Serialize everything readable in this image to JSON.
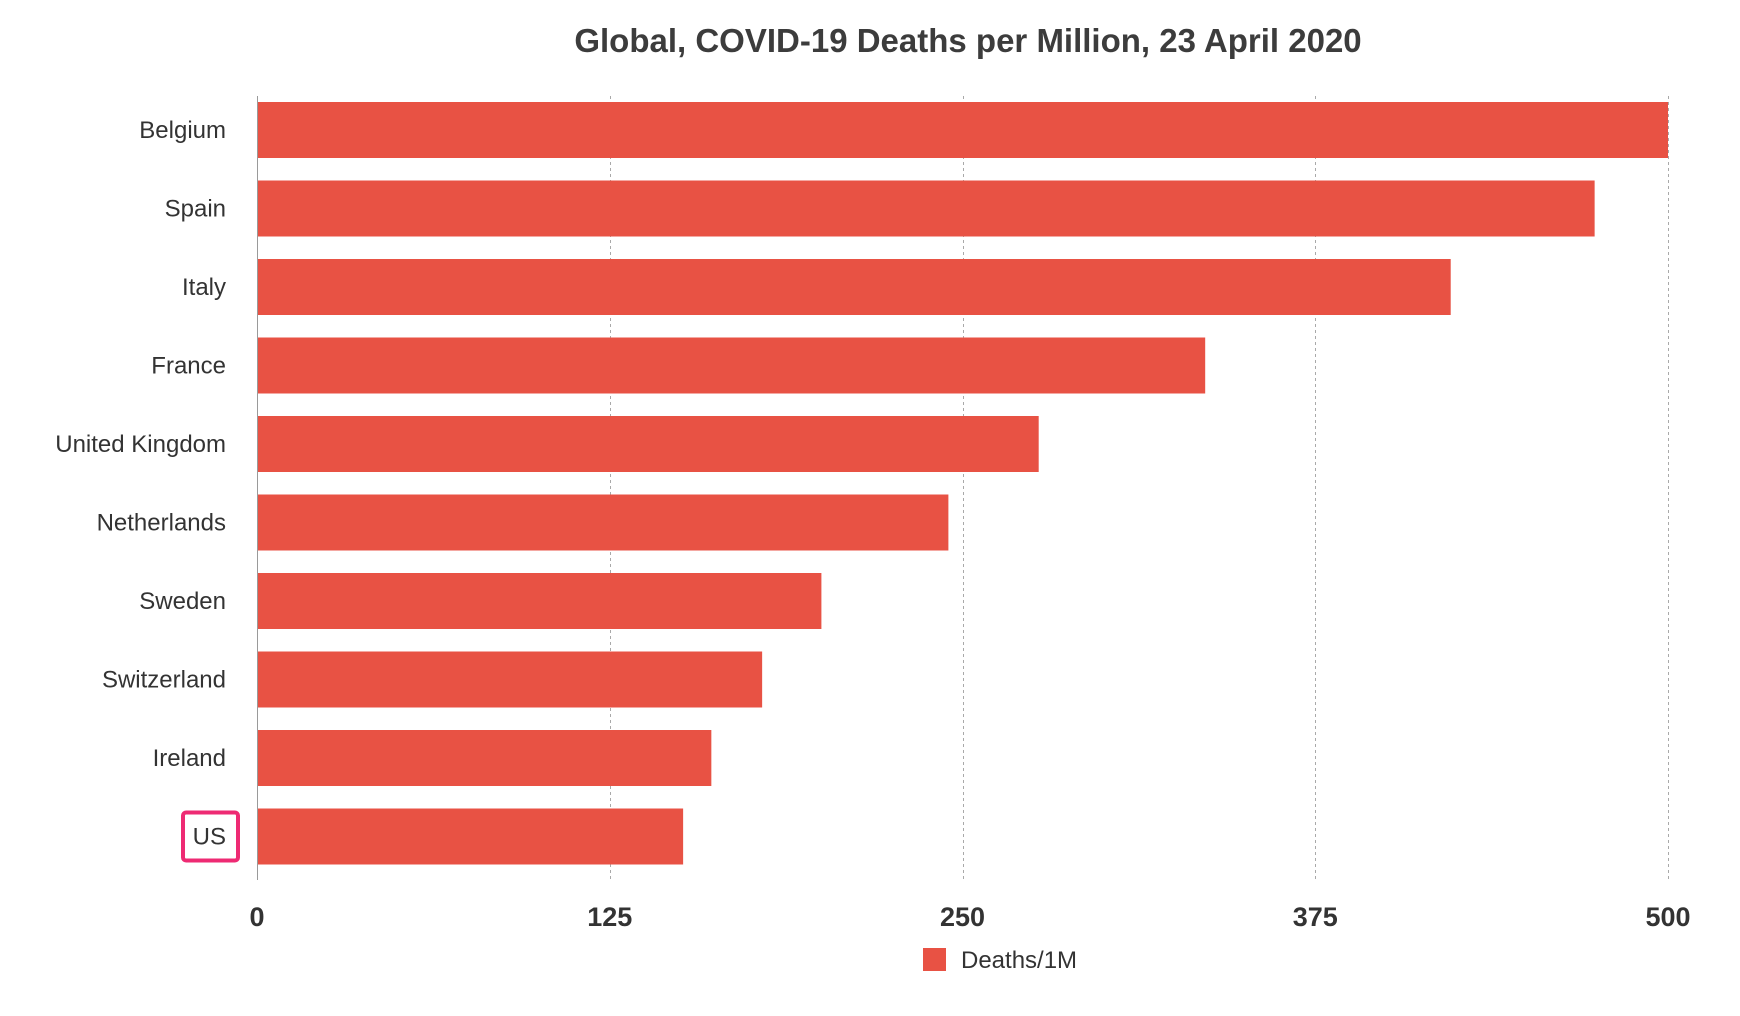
{
  "chart_data": {
    "type": "bar",
    "orientation": "horizontal",
    "title": "Global, COVID-19 Deaths per Million, 23 April 2020",
    "xlabel": "",
    "ylabel": "",
    "categories": [
      "Belgium",
      "Spain",
      "Italy",
      "France",
      "United Kingdom",
      "Netherlands",
      "Sweden",
      "Switzerland",
      "Ireland",
      "US"
    ],
    "series": [
      {
        "name": "Deaths/1M",
        "color": "#e85244",
        "values": [
          500,
          474,
          423,
          336,
          277,
          245,
          200,
          179,
          161,
          151
        ]
      }
    ],
    "xlim": [
      0,
      500
    ],
    "xticks": [
      0,
      125,
      250,
      375,
      500
    ],
    "grid": true,
    "legend": "bottom",
    "highlight": {
      "category": "US",
      "color": "#ee2a73"
    }
  }
}
